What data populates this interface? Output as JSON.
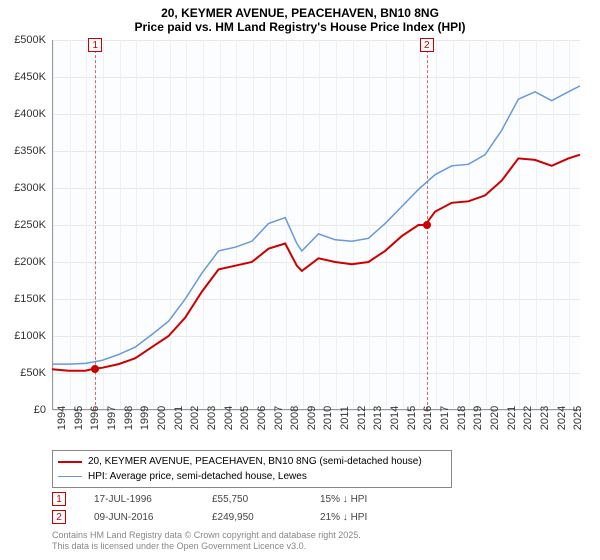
{
  "title_line1": "20, KEYMER AVENUE, PEACEHAVEN, BN10 8NG",
  "title_line2": "Price paid vs. HM Land Registry's House Price Index (HPI)",
  "chart": {
    "type": "line",
    "xlim": [
      1994,
      2025.7
    ],
    "ylim": [
      0,
      500000
    ],
    "ytick_step": 50000,
    "years": [
      1994,
      1995,
      1996,
      1997,
      1998,
      1999,
      2000,
      2001,
      2002,
      2003,
      2004,
      2005,
      2006,
      2007,
      2008,
      2009,
      2010,
      2011,
      2012,
      2013,
      2014,
      2015,
      2016,
      2017,
      2018,
      2019,
      2020,
      2021,
      2022,
      2023,
      2024,
      2025
    ],
    "background_color": "#fcfdfe",
    "grid_color": "#e8e8e8",
    "axis_color": "#999999",
    "title_fontsize": 12,
    "tick_fontsize": 11,
    "series": [
      {
        "name": "property",
        "label": "20, KEYMER AVENUE, PEACEHAVEN, BN10 8NG (semi-detached house)",
        "color": "#cc0000",
        "line_width": 2,
        "data": [
          [
            1994,
            55000
          ],
          [
            1995,
            53000
          ],
          [
            1996,
            53000
          ],
          [
            1996.5,
            55750
          ],
          [
            1997,
            57000
          ],
          [
            1998,
            62000
          ],
          [
            1999,
            70000
          ],
          [
            2000,
            85000
          ],
          [
            2001,
            100000
          ],
          [
            2002,
            125000
          ],
          [
            2003,
            160000
          ],
          [
            2004,
            190000
          ],
          [
            2005,
            195000
          ],
          [
            2006,
            200000
          ],
          [
            2007,
            218000
          ],
          [
            2008,
            225000
          ],
          [
            2008.7,
            195000
          ],
          [
            2009,
            188000
          ],
          [
            2010,
            205000
          ],
          [
            2011,
            200000
          ],
          [
            2012,
            197000
          ],
          [
            2013,
            200000
          ],
          [
            2014,
            215000
          ],
          [
            2015,
            235000
          ],
          [
            2016,
            249950
          ],
          [
            2016.4,
            249950
          ],
          [
            2017,
            268000
          ],
          [
            2018,
            280000
          ],
          [
            2019,
            282000
          ],
          [
            2020,
            290000
          ],
          [
            2021,
            310000
          ],
          [
            2022,
            340000
          ],
          [
            2023,
            338000
          ],
          [
            2024,
            330000
          ],
          [
            2025,
            340000
          ],
          [
            2025.7,
            345000
          ]
        ]
      },
      {
        "name": "hpi",
        "label": "HPI: Average price, semi-detached house, Lewes",
        "color": "#6699dd",
        "line_width": 1.5,
        "data": [
          [
            1994,
            62000
          ],
          [
            1995,
            62000
          ],
          [
            1996,
            63000
          ],
          [
            1997,
            67000
          ],
          [
            1998,
            75000
          ],
          [
            1999,
            85000
          ],
          [
            2000,
            102000
          ],
          [
            2001,
            120000
          ],
          [
            2002,
            150000
          ],
          [
            2003,
            185000
          ],
          [
            2004,
            215000
          ],
          [
            2005,
            220000
          ],
          [
            2006,
            228000
          ],
          [
            2007,
            252000
          ],
          [
            2008,
            260000
          ],
          [
            2008.7,
            225000
          ],
          [
            2009,
            215000
          ],
          [
            2010,
            238000
          ],
          [
            2011,
            230000
          ],
          [
            2012,
            228000
          ],
          [
            2013,
            232000
          ],
          [
            2014,
            252000
          ],
          [
            2015,
            275000
          ],
          [
            2016,
            298000
          ],
          [
            2017,
            318000
          ],
          [
            2018,
            330000
          ],
          [
            2019,
            332000
          ],
          [
            2020,
            345000
          ],
          [
            2021,
            378000
          ],
          [
            2022,
            420000
          ],
          [
            2023,
            430000
          ],
          [
            2024,
            418000
          ],
          [
            2025,
            430000
          ],
          [
            2025.7,
            438000
          ]
        ]
      }
    ],
    "markers": [
      {
        "num": "1",
        "year": 1996.54,
        "price": 55750
      },
      {
        "num": "2",
        "year": 2016.44,
        "price": 249950
      }
    ]
  },
  "legend": {
    "items": [
      {
        "color": "#cc0000",
        "width": 2,
        "label_key": "chart.series.0.label"
      },
      {
        "color": "#6699dd",
        "width": 1.5,
        "label_key": "chart.series.1.label"
      }
    ]
  },
  "sales": [
    {
      "num": "1",
      "date": "17-JUL-1996",
      "price": "£55,750",
      "diff": "15% ↓ HPI"
    },
    {
      "num": "2",
      "date": "09-JUN-2016",
      "price": "£249,950",
      "diff": "21% ↓ HPI"
    }
  ],
  "attribution_line1": "Contains HM Land Registry data © Crown copyright and database right 2025.",
  "attribution_line2": "This data is licensed under the Open Government Licence v3.0.",
  "y_tick_labels": [
    "£0",
    "£50K",
    "£100K",
    "£150K",
    "£200K",
    "£250K",
    "£300K",
    "£350K",
    "£400K",
    "£450K",
    "£500K"
  ]
}
